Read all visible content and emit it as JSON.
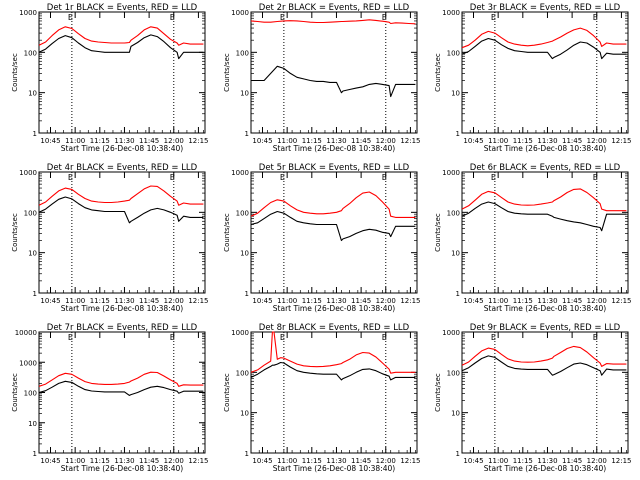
{
  "figure": {
    "xlabel": "Start Time (26-Dec-08 10:38:40)",
    "ylabel": "Counts/sec",
    "x_tick_labels": [
      "10:45",
      "11:00",
      "11:15",
      "11:30",
      "11:45",
      "12:00",
      "12:15"
    ],
    "colors": {
      "events": "#000000",
      "lld": "#ff0000",
      "axes": "#000000"
    }
  },
  "chart_data": [
    {
      "type": "line",
      "title": "Det 1r BLACK = Events, RED = LLD",
      "marker": "E",
      "x": [
        "10:38",
        "10:42",
        "10:46",
        "10:50",
        "10:54",
        "10:58",
        "11:02",
        "11:06",
        "11:10",
        "11:14",
        "11:18",
        "11:22",
        "11:26",
        "11:30",
        "11:33",
        "11:34",
        "11:38",
        "11:42",
        "11:46",
        "11:50",
        "11:54",
        "11:58",
        "12:02",
        "12:03",
        "12:06",
        "12:10",
        "12:14",
        "12:18"
      ],
      "xlim": [
        "10:38",
        "12:19"
      ],
      "ylim": [
        1,
        1000
      ],
      "yscale": "log",
      "y_tick_labels": [
        "1",
        "10",
        "100",
        "1000"
      ],
      "vlines": [
        "10:58",
        "12:00"
      ],
      "series": [
        {
          "name": "Events",
          "color": "#000000",
          "values": [
            100,
            120,
            165,
            220,
            260,
            230,
            170,
            130,
            110,
            105,
            100,
            100,
            100,
            100,
            100,
            140,
            175,
            230,
            270,
            245,
            185,
            130,
            100,
            70,
            100,
            100,
            100,
            100
          ]
        },
        {
          "name": "LLD",
          "color": "#ff0000",
          "values": [
            150,
            180,
            260,
            360,
            430,
            390,
            290,
            220,
            190,
            180,
            175,
            170,
            170,
            170,
            175,
            200,
            260,
            360,
            430,
            400,
            290,
            210,
            170,
            150,
            170,
            160,
            160,
            160
          ]
        }
      ]
    },
    {
      "type": "line",
      "title": "Det 2r BLACK = Events, RED = LLD",
      "marker": "E",
      "x": [
        "10:38",
        "10:42",
        "10:46",
        "10:50",
        "10:54",
        "10:58",
        "11:02",
        "11:06",
        "11:10",
        "11:14",
        "11:18",
        "11:22",
        "11:26",
        "11:30",
        "11:33",
        "11:34",
        "11:38",
        "11:42",
        "11:46",
        "11:50",
        "11:54",
        "11:58",
        "12:02",
        "12:03",
        "12:06",
        "12:10",
        "12:14",
        "12:18"
      ],
      "xlim": [
        "10:38",
        "12:19"
      ],
      "ylim": [
        1,
        1000
      ],
      "yscale": "log",
      "y_tick_labels": [
        "1",
        "10",
        "100",
        "1000"
      ],
      "vlines": [
        "10:58",
        "12:00"
      ],
      "series": [
        {
          "name": "Events",
          "color": "#000000",
          "values": [
            20,
            20,
            20,
            30,
            45,
            40,
            30,
            24,
            22,
            20,
            19,
            19,
            18,
            18,
            10,
            11,
            12,
            13,
            14,
            16,
            17,
            16,
            15,
            8,
            16,
            16,
            16,
            16
          ]
        },
        {
          "name": "LLD",
          "color": "#ff0000",
          "values": [
            600,
            580,
            560,
            560,
            580,
            600,
            610,
            600,
            580,
            560,
            550,
            550,
            560,
            570,
            580,
            580,
            590,
            600,
            620,
            640,
            620,
            590,
            560,
            520,
            540,
            530,
            520,
            510
          ]
        }
      ]
    },
    {
      "type": "line",
      "title": "Det 3r BLACK = Events, RED = LLD",
      "marker": "E",
      "x": [
        "10:38",
        "10:42",
        "10:46",
        "10:50",
        "10:54",
        "10:58",
        "11:02",
        "11:06",
        "11:10",
        "11:14",
        "11:18",
        "11:22",
        "11:26",
        "11:30",
        "11:33",
        "11:34",
        "11:38",
        "11:42",
        "11:46",
        "11:50",
        "11:54",
        "11:58",
        "12:02",
        "12:03",
        "12:06",
        "12:10",
        "12:14",
        "12:18"
      ],
      "xlim": [
        "10:38",
        "12:19"
      ],
      "ylim": [
        1,
        1000
      ],
      "yscale": "log",
      "y_tick_labels": [
        "1",
        "10",
        "100",
        "1000"
      ],
      "vlines": [
        "10:58",
        "12:00"
      ],
      "series": [
        {
          "name": "Events",
          "color": "#000000",
          "values": [
            90,
            105,
            140,
            190,
            220,
            200,
            155,
            125,
            110,
            105,
            100,
            100,
            100,
            100,
            70,
            75,
            90,
            115,
            150,
            180,
            170,
            135,
            100,
            70,
            95,
            90,
            90,
            90
          ]
        },
        {
          "name": "LLD",
          "color": "#ff0000",
          "values": [
            130,
            150,
            200,
            280,
            330,
            300,
            230,
            180,
            160,
            150,
            145,
            150,
            160,
            175,
            190,
            200,
            240,
            300,
            360,
            400,
            350,
            260,
            180,
            140,
            170,
            160,
            160,
            160
          ]
        }
      ]
    },
    {
      "type": "line",
      "title": "Det 4r BLACK = Events, RED = LLD",
      "marker": "E",
      "x": [
        "10:38",
        "10:42",
        "10:46",
        "10:50",
        "10:54",
        "10:58",
        "11:02",
        "11:06",
        "11:10",
        "11:14",
        "11:18",
        "11:22",
        "11:26",
        "11:30",
        "11:33",
        "11:34",
        "11:38",
        "11:42",
        "11:46",
        "11:50",
        "11:54",
        "11:58",
        "12:02",
        "12:03",
        "12:06",
        "12:10",
        "12:14",
        "12:18"
      ],
      "xlim": [
        "10:38",
        "12:19"
      ],
      "ylim": [
        1,
        1000
      ],
      "yscale": "log",
      "y_tick_labels": [
        "1",
        "10",
        "100",
        "1000"
      ],
      "vlines": [
        "10:58",
        "12:00"
      ],
      "series": [
        {
          "name": "Events",
          "color": "#000000",
          "values": [
            100,
            120,
            160,
            210,
            240,
            215,
            165,
            130,
            115,
            110,
            105,
            105,
            105,
            105,
            55,
            60,
            75,
            95,
            115,
            125,
            115,
            100,
            85,
            60,
            80,
            75,
            75,
            75
          ]
        },
        {
          "name": "LLD",
          "color": "#ff0000",
          "values": [
            150,
            180,
            250,
            340,
            400,
            370,
            280,
            220,
            190,
            180,
            175,
            175,
            180,
            190,
            200,
            220,
            290,
            380,
            450,
            440,
            340,
            250,
            190,
            150,
            170,
            160,
            160,
            160
          ]
        }
      ]
    },
    {
      "type": "line",
      "title": "Det 5r BLACK = Events, RED = LLD",
      "marker": "E",
      "x": [
        "10:38",
        "10:42",
        "10:46",
        "10:50",
        "10:54",
        "10:58",
        "11:02",
        "11:06",
        "11:10",
        "11:14",
        "11:18",
        "11:22",
        "11:26",
        "11:30",
        "11:33",
        "11:34",
        "11:38",
        "11:42",
        "11:46",
        "11:50",
        "11:54",
        "11:58",
        "12:02",
        "12:03",
        "12:06",
        "12:10",
        "12:14",
        "12:18"
      ],
      "xlim": [
        "10:38",
        "12:19"
      ],
      "ylim": [
        1,
        1000
      ],
      "yscale": "log",
      "y_tick_labels": [
        "1",
        "10",
        "100",
        "1000"
      ],
      "vlines": [
        "10:58",
        "12:00"
      ],
      "series": [
        {
          "name": "Events",
          "color": "#000000",
          "values": [
            50,
            55,
            70,
            90,
            105,
            95,
            75,
            60,
            55,
            52,
            50,
            50,
            50,
            50,
            20,
            22,
            25,
            30,
            35,
            38,
            36,
            32,
            30,
            25,
            45,
            45,
            45,
            45
          ]
        },
        {
          "name": "LLD",
          "color": "#ff0000",
          "values": [
            80,
            95,
            130,
            175,
            205,
            190,
            145,
            115,
            100,
            95,
            92,
            92,
            95,
            100,
            110,
            125,
            165,
            230,
            300,
            320,
            260,
            180,
            120,
            80,
            75,
            75,
            75,
            75
          ]
        }
      ]
    },
    {
      "type": "line",
      "title": "Det 6r BLACK = Events, RED = LLD",
      "marker": "E",
      "x": [
        "10:38",
        "10:42",
        "10:46",
        "10:50",
        "10:54",
        "10:58",
        "11:02",
        "11:06",
        "11:10",
        "11:14",
        "11:18",
        "11:22",
        "11:26",
        "11:30",
        "11:33",
        "11:34",
        "11:38",
        "11:42",
        "11:46",
        "11:50",
        "11:54",
        "11:58",
        "12:02",
        "12:03",
        "12:06",
        "12:10",
        "12:14",
        "12:18"
      ],
      "xlim": [
        "10:38",
        "12:19"
      ],
      "ylim": [
        1,
        1000
      ],
      "yscale": "log",
      "y_tick_labels": [
        "1",
        "10",
        "100",
        "1000"
      ],
      "vlines": [
        "10:58",
        "12:00"
      ],
      "series": [
        {
          "name": "Events",
          "color": "#000000",
          "values": [
            80,
            95,
            125,
            160,
            180,
            165,
            130,
            105,
            95,
            92,
            90,
            90,
            90,
            90,
            80,
            75,
            68,
            62,
            58,
            55,
            50,
            45,
            42,
            35,
            90,
            90,
            90,
            90
          ]
        },
        {
          "name": "LLD",
          "color": "#ff0000",
          "values": [
            120,
            145,
            200,
            280,
            330,
            305,
            235,
            180,
            160,
            152,
            150,
            152,
            160,
            170,
            180,
            195,
            240,
            310,
            370,
            380,
            310,
            230,
            165,
            120,
            110,
            110,
            110,
            110
          ]
        }
      ]
    },
    {
      "type": "line",
      "title": "Det 7r BLACK = Events, RED = LLD",
      "marker": "E",
      "x": [
        "10:38",
        "10:42",
        "10:46",
        "10:50",
        "10:54",
        "10:58",
        "11:02",
        "11:06",
        "11:10",
        "11:14",
        "11:18",
        "11:22",
        "11:26",
        "11:30",
        "11:33",
        "11:34",
        "11:38",
        "11:42",
        "11:46",
        "11:50",
        "11:54",
        "11:58",
        "12:02",
        "12:03",
        "12:06",
        "12:10",
        "12:14",
        "12:18"
      ],
      "xlim": [
        "10:38",
        "12:19"
      ],
      "ylim": [
        1,
        10000
      ],
      "yscale": "log",
      "y_tick_labels": [
        "1",
        "10",
        "100",
        "1000",
        "10000"
      ],
      "vlines": [
        "10:58",
        "12:00"
      ],
      "series": [
        {
          "name": "Events",
          "color": "#000000",
          "values": [
            100,
            115,
            150,
            200,
            235,
            215,
            160,
            125,
            112,
            108,
            105,
            105,
            105,
            105,
            80,
            85,
            100,
            125,
            150,
            160,
            145,
            125,
            110,
            95,
            110,
            110,
            110,
            110
          ]
        },
        {
          "name": "LLD",
          "color": "#ff0000",
          "values": [
            160,
            190,
            260,
            360,
            430,
            400,
            300,
            230,
            200,
            190,
            185,
            185,
            190,
            200,
            220,
            240,
            300,
            400,
            470,
            460,
            350,
            260,
            200,
            160,
            180,
            175,
            175,
            175
          ]
        }
      ]
    },
    {
      "type": "line",
      "title": "Det 8r BLACK = Events, RED = LLD",
      "marker": "E",
      "x": [
        "10:38",
        "10:42",
        "10:46",
        "10:50",
        "10:51",
        "10:52",
        "10:54",
        "10:56",
        "10:58",
        "11:02",
        "11:06",
        "11:10",
        "11:14",
        "11:18",
        "11:22",
        "11:26",
        "11:30",
        "11:33",
        "11:34",
        "11:38",
        "11:42",
        "11:46",
        "11:50",
        "11:54",
        "11:58",
        "12:02",
        "12:03",
        "12:06",
        "12:10",
        "12:14",
        "12:18"
      ],
      "xlim": [
        "10:38",
        "12:19"
      ],
      "ylim": [
        1,
        1000
      ],
      "yscale": "log",
      "y_tick_labels": [
        "1",
        "10",
        "100",
        "1000"
      ],
      "vlines": [
        "10:58",
        "12:00"
      ],
      "series": [
        {
          "name": "Events",
          "color": "#000000",
          "values": [
            75,
            90,
            115,
            140,
            150,
            150,
            160,
            175,
            170,
            135,
            110,
            100,
            95,
            92,
            90,
            90,
            90,
            65,
            70,
            82,
            100,
            118,
            122,
            110,
            92,
            80,
            65,
            75,
            75,
            75,
            75
          ]
        },
        {
          "name": "LLD",
          "color": "#ff0000",
          "values": [
            100,
            115,
            150,
            190,
            1000,
            1000,
            210,
            230,
            225,
            190,
            160,
            145,
            140,
            138,
            140,
            145,
            155,
            165,
            175,
            210,
            270,
            310,
            300,
            240,
            170,
            120,
            95,
            100,
            100,
            100,
            100
          ]
        }
      ]
    },
    {
      "type": "line",
      "title": "Det 9r BLACK = Events, RED = LLD",
      "marker": "E",
      "x": [
        "10:38",
        "10:42",
        "10:46",
        "10:50",
        "10:54",
        "10:58",
        "11:02",
        "11:06",
        "11:10",
        "11:14",
        "11:18",
        "11:22",
        "11:26",
        "11:30",
        "11:33",
        "11:34",
        "11:38",
        "11:42",
        "11:46",
        "11:50",
        "11:54",
        "11:58",
        "12:02",
        "12:03",
        "12:06",
        "12:10",
        "12:14",
        "12:18"
      ],
      "xlim": [
        "10:38",
        "12:19"
      ],
      "ylim": [
        1,
        1000
      ],
      "yscale": "log",
      "y_tick_labels": [
        "1",
        "10",
        "100",
        "1000"
      ],
      "vlines": [
        "10:58",
        "12:00"
      ],
      "series": [
        {
          "name": "Events",
          "color": "#000000",
          "values": [
            110,
            130,
            170,
            220,
            255,
            235,
            180,
            140,
            125,
            120,
            118,
            118,
            118,
            118,
            85,
            88,
            105,
            130,
            160,
            170,
            155,
            130,
            110,
            85,
            120,
            115,
            115,
            115
          ]
        },
        {
          "name": "LLD",
          "color": "#ff0000",
          "values": [
            150,
            180,
            250,
            340,
            400,
            370,
            280,
            215,
            190,
            180,
            178,
            180,
            190,
            205,
            225,
            250,
            310,
            390,
            440,
            410,
            320,
            230,
            170,
            140,
            165,
            160,
            160,
            160
          ]
        }
      ]
    }
  ]
}
